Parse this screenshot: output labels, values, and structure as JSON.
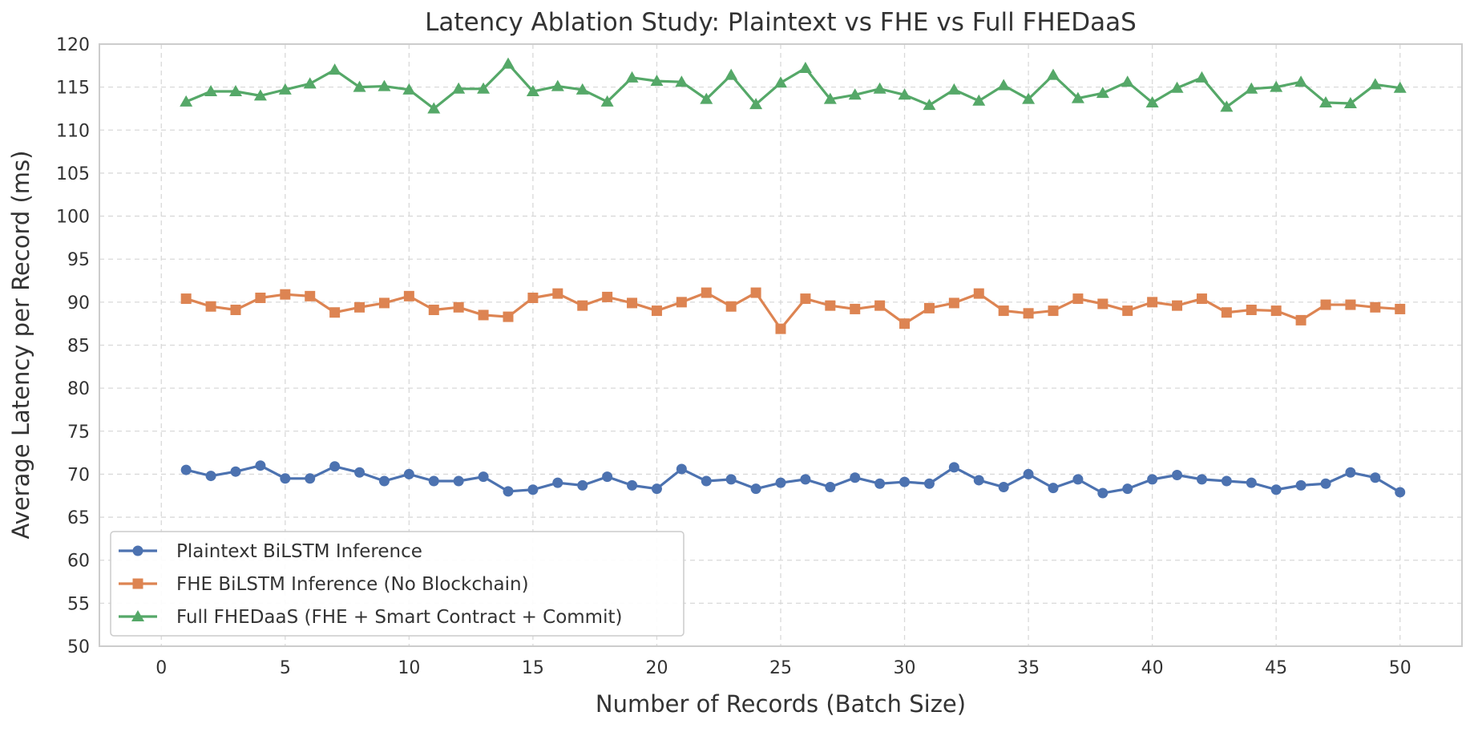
{
  "chart_data": {
    "type": "line",
    "title": "Latency Ablation Study: Plaintext vs FHE vs Full FHEDaaS",
    "xlabel": "Number of Records (Batch Size)",
    "ylabel": "Average Latency per Record (ms)",
    "xlim": [
      -2.5,
      52.5
    ],
    "ylim": [
      50,
      120
    ],
    "xticks": [
      0,
      5,
      10,
      15,
      20,
      25,
      30,
      35,
      40,
      45,
      50
    ],
    "yticks": [
      50,
      55,
      60,
      65,
      70,
      75,
      80,
      85,
      90,
      95,
      100,
      105,
      110,
      115,
      120
    ],
    "grid": true,
    "legend_position": "lower-left",
    "x": [
      1,
      2,
      3,
      4,
      5,
      6,
      7,
      8,
      9,
      10,
      11,
      12,
      13,
      14,
      15,
      16,
      17,
      18,
      19,
      20,
      21,
      22,
      23,
      24,
      25,
      26,
      27,
      28,
      29,
      30,
      31,
      32,
      33,
      34,
      35,
      36,
      37,
      38,
      39,
      40,
      41,
      42,
      43,
      44,
      45,
      46,
      47,
      48,
      49,
      50
    ],
    "series": [
      {
        "name": "Plaintext BiLSTM Inference",
        "color": "#4c72b0",
        "marker": "circle",
        "values": [
          70.5,
          69.8,
          70.3,
          71.0,
          69.5,
          69.5,
          70.9,
          70.2,
          69.2,
          70.0,
          69.2,
          69.2,
          69.7,
          68.0,
          68.2,
          69.0,
          68.7,
          69.7,
          68.7,
          68.3,
          70.6,
          69.2,
          69.4,
          68.3,
          69.0,
          69.4,
          68.5,
          69.6,
          68.9,
          69.1,
          68.9,
          70.8,
          69.3,
          68.5,
          70.0,
          68.4,
          69.4,
          67.8,
          68.3,
          69.4,
          69.9,
          69.4,
          69.2,
          69.0,
          68.2,
          68.7,
          68.9,
          70.2,
          69.6,
          67.9
        ]
      },
      {
        "name": "FHE BiLSTM Inference (No Blockchain)",
        "color": "#dd8452",
        "marker": "square",
        "values": [
          90.4,
          89.5,
          89.1,
          90.5,
          90.9,
          90.7,
          88.8,
          89.4,
          89.9,
          90.7,
          89.1,
          89.4,
          88.5,
          88.3,
          90.5,
          91.0,
          89.6,
          90.6,
          89.9,
          89.0,
          90.0,
          91.1,
          89.5,
          91.1,
          86.9,
          90.4,
          89.6,
          89.2,
          89.6,
          87.5,
          89.3,
          89.9,
          91.0,
          89.0,
          88.7,
          89.0,
          90.4,
          89.8,
          89.0,
          90.0,
          89.6,
          90.4,
          88.8,
          89.1,
          89.0,
          87.9,
          89.7,
          89.7,
          89.4,
          89.2
        ]
      },
      {
        "name": "Full FHEDaaS (FHE + Smart Contract + Commit)",
        "color": "#55a868",
        "marker": "triangle",
        "values": [
          113.3,
          114.5,
          114.5,
          114.0,
          114.7,
          115.4,
          117.0,
          115.0,
          115.1,
          114.7,
          112.5,
          114.8,
          114.8,
          117.7,
          114.5,
          115.1,
          114.7,
          113.3,
          116.1,
          115.7,
          115.6,
          113.6,
          116.4,
          113.0,
          115.5,
          117.2,
          113.6,
          114.1,
          114.8,
          114.1,
          112.9,
          114.7,
          113.4,
          115.2,
          113.6,
          116.4,
          113.7,
          114.3,
          115.6,
          113.2,
          114.9,
          116.1,
          112.7,
          114.8,
          115.0,
          115.6,
          113.2,
          113.1,
          115.3,
          114.9
        ]
      }
    ]
  },
  "colors": {
    "grid": "#d9d9d9",
    "axes_frame": "#cccccc",
    "text": "#333333"
  }
}
